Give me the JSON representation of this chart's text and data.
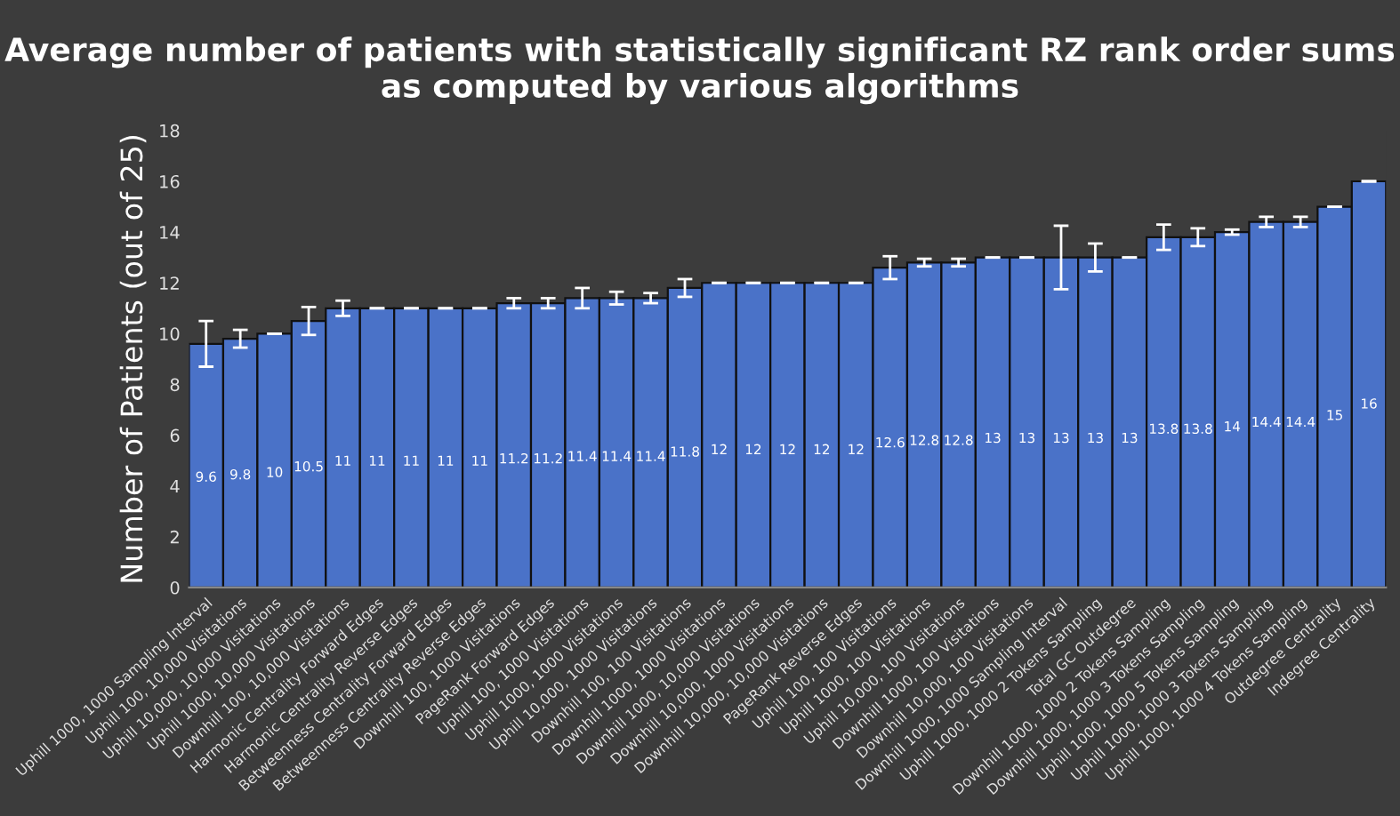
{
  "chart_data": {
    "type": "bar",
    "title": "Average number of patients with statistically significant RZ rank order sums as computed by various algorithms",
    "ylabel": "Number of Patients (out of 25)",
    "categories": [
      "Uphill 1000, 1000 Sampling Interval",
      "Uphill 100, 10,000 Visitations",
      "Uphill 10,000, 10,000 Visitations",
      "Uphill 1000, 10,000 Visitations",
      "Downhill 100, 10,000 Visitations",
      "Harmonic Centrality Forward Edges",
      "Harmonic Centrality Reverse Edges",
      "Betweenness Centrality Forward Edges",
      "Betweenness Centrality Reverse Edges",
      "Downhill 100, 1000 Visitations",
      "PageRank Forward Edges",
      "Uphill 100, 1000 Visitations",
      "Uphill 1000, 1000 Visitations",
      "Uphill 10,000, 1000 Visitations",
      "Downhill 100, 100 Visitations",
      "Downhill 1000, 1000 Visitations",
      "Downhill 1000, 10,000 Visitations",
      "Downhill 10,000, 1000 Visitations",
      "Downhill 10,000, 10,000 Visitations",
      "PageRank Reverse Edges",
      "Uphill 100, 100 Visitations",
      "Uphill 1000, 100 Visitations",
      "Uphill 10,000, 100 Visitations",
      "Downhill 1000, 100 Visitations",
      "Downhill 10,000, 100 Visitations",
      "Downhill 1000, 1000 Sampling Interval",
      "Uphill 1000, 1000 2 Tokens Sampling",
      "Total GC Outdegree",
      "Downhill 1000, 1000 2 Tokens Sampling",
      "Downhill 1000, 1000 3 Tokens Sampling",
      "Uphill 1000, 1000 5 Tokens Sampling",
      "Uphill 1000, 1000 3 Tokens Sampling",
      "Uphill 1000, 1000 4 Tokens Sampling",
      "Outdegree Centrality",
      "Indegree Centrality"
    ],
    "values": [
      9.6,
      9.8,
      10,
      10.5,
      11,
      11,
      11,
      11,
      11,
      11.2,
      11.2,
      11.4,
      11.4,
      11.4,
      11.8,
      12,
      12,
      12,
      12,
      12,
      12.6,
      12.8,
      12.8,
      13,
      13,
      13,
      13,
      13,
      13.8,
      13.8,
      14,
      14.4,
      14.4,
      15,
      16
    ],
    "errors": [
      0.9,
      0.35,
      0,
      0.55,
      0.3,
      0,
      0,
      0,
      0,
      0.2,
      0.2,
      0.4,
      0.25,
      0.2,
      0.35,
      0,
      0,
      0,
      0,
      0,
      0.45,
      0.15,
      0.15,
      0,
      0,
      1.25,
      0.55,
      0,
      0.5,
      0.35,
      0.1,
      0.2,
      0.2,
      0,
      0
    ],
    "color": "#4a72c8",
    "data_labels": true,
    "ylim": [
      0,
      18
    ],
    "yticks": [
      0,
      2,
      4,
      6,
      8,
      10,
      12,
      14,
      16,
      18
    ],
    "grid": false,
    "legend": false
  }
}
